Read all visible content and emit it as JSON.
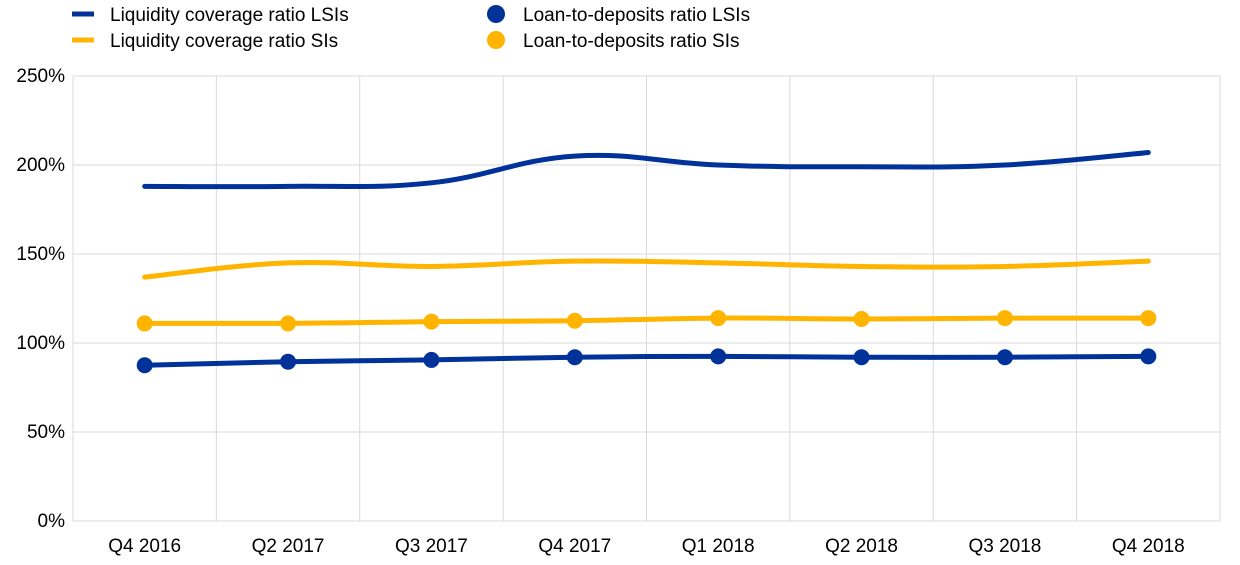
{
  "chart_data": {
    "type": "line",
    "title": "",
    "xlabel": "",
    "ylabel": "",
    "categories": [
      "Q4 2016",
      "Q2 2017",
      "Q3 2017",
      "Q4 2017",
      "Q1 2018",
      "Q2 2018",
      "Q3 2018",
      "Q4 2018"
    ],
    "ylim": [
      0,
      250
    ],
    "yticks": [
      0,
      50,
      100,
      150,
      200,
      250
    ],
    "ytick_labels": [
      "0%",
      "50%",
      "100%",
      "150%",
      "200%",
      "250%"
    ],
    "grid": true,
    "legend_position": "top-left",
    "series": [
      {
        "name": "Liquidity coverage ratio LSIs",
        "style": "line",
        "color": "#003299",
        "values": [
          188,
          188,
          190,
          205,
          200,
          199,
          200,
          207
        ]
      },
      {
        "name": "Liquidity coverage ratio SIs",
        "style": "line",
        "color": "#FFB400",
        "values": [
          137,
          145,
          143,
          146,
          145,
          143,
          143,
          146
        ]
      },
      {
        "name": "Loan-to-deposits ratio LSIs",
        "style": "line-markers",
        "color": "#003299",
        "values": [
          87.5,
          89.5,
          90.5,
          92,
          92.5,
          92,
          92,
          92.5
        ]
      },
      {
        "name": "Loan-to-deposits ratio SIs",
        "style": "line-markers",
        "color": "#FFB400",
        "values": [
          111,
          111,
          112,
          112.5,
          114,
          113.5,
          114,
          114
        ]
      }
    ]
  }
}
